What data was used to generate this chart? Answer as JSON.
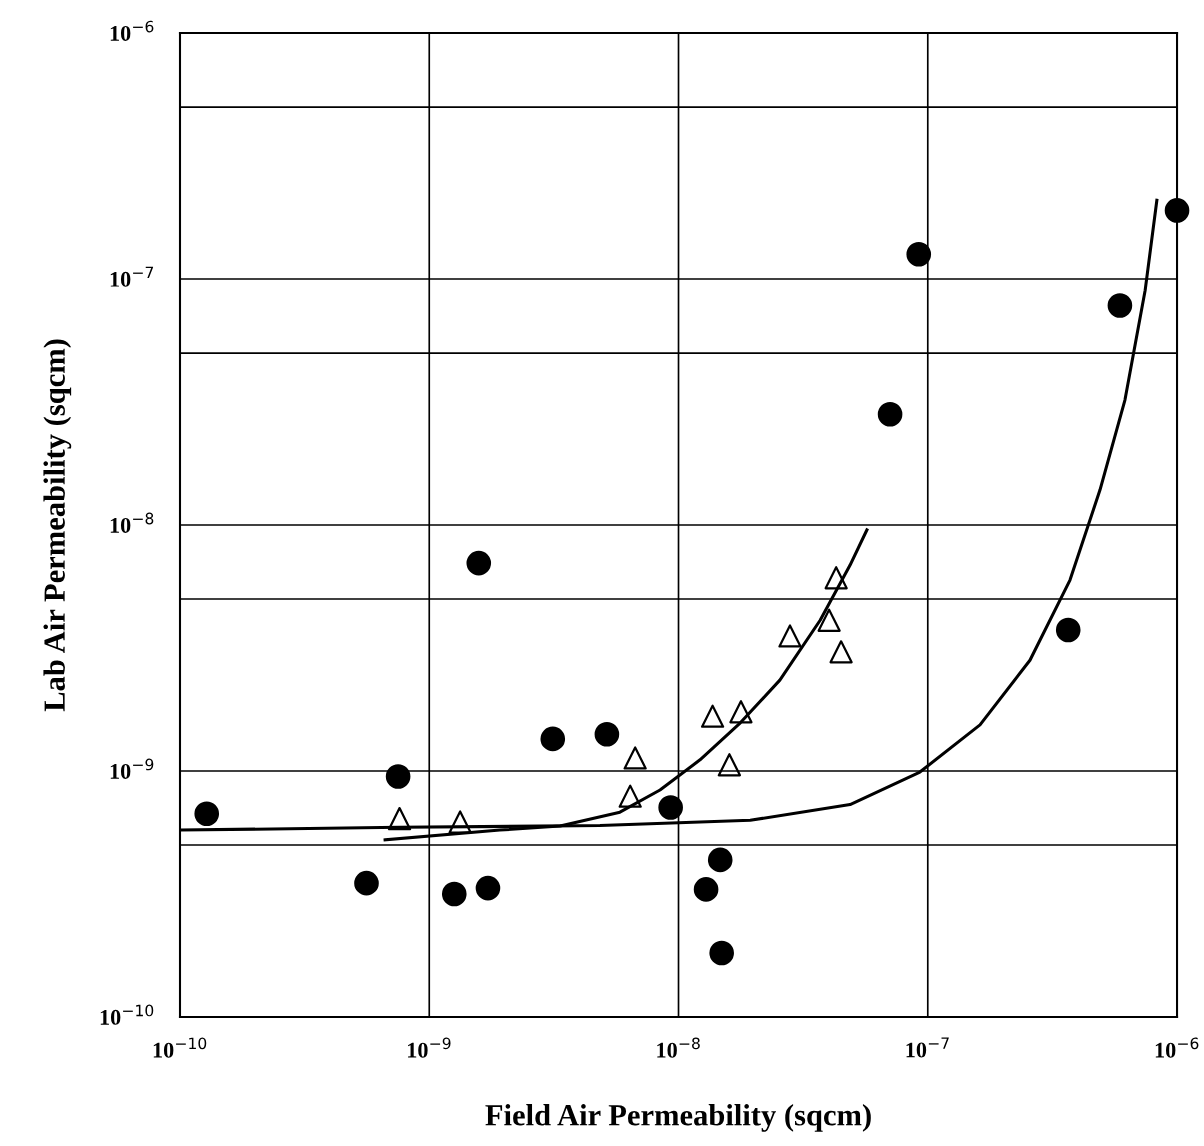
{
  "chart_data": {
    "type": "scatter",
    "xlabel": "Field Air Permeability (sqcm)",
    "ylabel": "Lab Air Permeability (sqcm)",
    "log": "xy",
    "grid": true,
    "legend": false,
    "xlim": [
      1e-10,
      1e-06
    ],
    "ylim": [
      1e-10,
      1e-06
    ],
    "xticks": [
      {
        "value": 1e-10,
        "label": "10$^{−10}$"
      },
      {
        "value": 1e-09,
        "label": "10$^{−9}$"
      },
      {
        "value": 1e-08,
        "label": "10$^{−8}$"
      },
      {
        "value": 1e-07,
        "label": "10$^{−7}$"
      },
      {
        "value": 1e-06,
        "label": "10$^{−6}$"
      }
    ],
    "yticks": [
      {
        "value": 1e-10,
        "label": "10$^{−10}$"
      },
      {
        "value": 5e-10,
        "label": null
      },
      {
        "value": 1e-09,
        "label": "10$^{−9}$"
      },
      {
        "value": 5e-09,
        "label": null
      },
      {
        "value": 1e-08,
        "label": "10$^{−8}$"
      },
      {
        "value": 5e-08,
        "label": null
      },
      {
        "value": 1e-07,
        "label": "10$^{−7}$"
      },
      {
        "value": 5e-07,
        "label": null
      },
      {
        "value": 1e-06,
        "label": "10$^{−6}$"
      }
    ],
    "series": [
      {
        "type": "scatter",
        "marker": "circle",
        "color": "#000000",
        "x": [
          1.28e-10,
          5.6e-10,
          7.5e-10,
          1.26e-09,
          1.72e-09,
          1.58e-09,
          3.13e-09,
          5.16e-09,
          9.3e-09,
          1.29e-08,
          1.47e-08,
          1.49e-08,
          7.06e-08,
          9.2e-08,
          3.66e-07,
          5.9e-07,
          1e-06
        ],
        "values": [
          6.7e-10,
          3.5e-10,
          9.5e-10,
          3.16e-10,
          3.34e-10,
          7e-09,
          1.35e-09,
          1.41e-09,
          7.1e-10,
          3.3e-10,
          4.35e-10,
          1.82e-10,
          2.82e-08,
          1.26e-07,
          3.74e-09,
          7.8e-08,
          1.9e-07
        ]
      },
      {
        "type": "scatter",
        "marker": "triangle",
        "color": "#000000",
        "x": [
          7.6e-10,
          1.33e-09,
          6.4e-09,
          6.7e-09,
          1.37e-08,
          1.78e-08,
          1.6e-08,
          2.8e-08,
          4.02e-08,
          4.29e-08,
          4.49e-08
        ],
        "values": [
          6.4e-10,
          6.2e-10,
          7.9e-10,
          1.13e-09,
          1.67e-09,
          1.74e-09,
          1.06e-09,
          3.54e-09,
          4.1e-09,
          6.1e-09,
          3.05e-09
        ]
      },
      {
        "type": "line",
        "marker": "none",
        "line_style": "solid",
        "color": "#000000",
        "x": [
          6.65e-10,
          1.92e-09,
          3.35e-09,
          5.82e-09,
          8.43e-09,
          1.22e-08,
          1.77e-08,
          2.55e-08,
          3.7e-08,
          4.88e-08,
          5.7e-08
        ],
        "values": [
          5.25e-10,
          5.75e-10,
          5.97e-10,
          6.8e-10,
          8.37e-10,
          1.11e-09,
          1.57e-09,
          2.34e-09,
          4.1e-09,
          6.87e-09,
          9.55e-09
        ]
      },
      {
        "type": "line",
        "marker": "none",
        "line_style": "solid",
        "color": "#000000",
        "x": [
          1e-10,
          7.6e-10,
          4.84e-09,
          1.94e-08,
          4.88e-08,
          9.3e-08,
          1.62e-07,
          2.57e-07,
          3.72e-07,
          4.91e-07,
          6.18e-07,
          7.45e-07,
          8.3e-07
        ],
        "values": [
          5.75e-10,
          5.9e-10,
          6e-10,
          6.3e-10,
          7.3e-10,
          9.9e-10,
          1.54e-09,
          2.82e-09,
          5.97e-09,
          1.39e-08,
          3.22e-08,
          9e-08,
          2.09e-07
        ]
      }
    ]
  }
}
